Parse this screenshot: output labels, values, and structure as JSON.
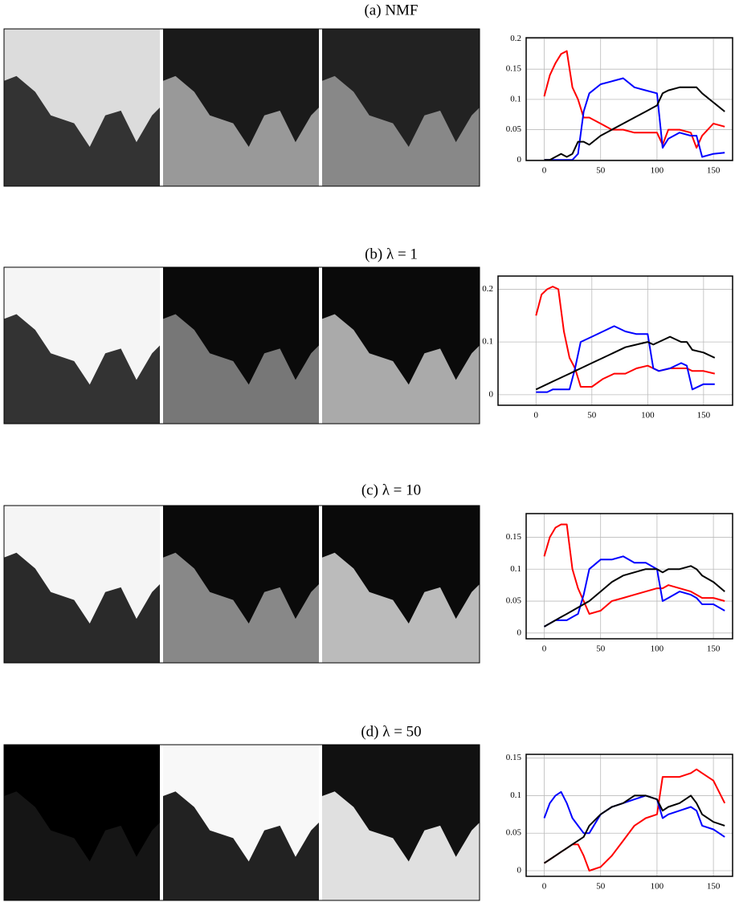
{
  "chart_data": [
    {
      "type": "line",
      "title": "(a) NMF",
      "grid": true,
      "x": [
        0,
        5,
        10,
        15,
        20,
        25,
        30,
        35,
        40,
        50,
        60,
        70,
        80,
        90,
        100,
        105,
        110,
        120,
        130,
        135,
        140,
        150,
        160
      ],
      "xlim": [
        -16,
        167
      ],
      "xticks": [
        0,
        50,
        100,
        150
      ],
      "ylim": [
        -0.001,
        0.202
      ],
      "yticks": [
        0,
        0.05,
        0.1,
        0.15,
        0.2
      ],
      "series": [
        {
          "color": "#ff0000",
          "values": [
            0.105,
            0.14,
            0.16,
            0.175,
            0.18,
            0.12,
            0.1,
            0.07,
            0.07,
            0.06,
            0.05,
            0.05,
            0.045,
            0.045,
            0.045,
            0.025,
            0.05,
            0.05,
            0.045,
            0.02,
            0.04,
            0.06,
            0.055
          ]
        },
        {
          "color": "#0000ff",
          "values": [
            0,
            0,
            0,
            0,
            0,
            0,
            0.01,
            0.08,
            0.11,
            0.125,
            0.13,
            0.135,
            0.12,
            0.115,
            0.11,
            0.02,
            0.035,
            0.045,
            0.04,
            0.04,
            0.005,
            0.01,
            0.012
          ]
        },
        {
          "color": "#000000",
          "values": [
            0,
            0,
            0.005,
            0.01,
            0.005,
            0.01,
            0.03,
            0.03,
            0.025,
            0.04,
            0.05,
            0.06,
            0.07,
            0.08,
            0.09,
            0.11,
            0.115,
            0.12,
            0.12,
            0.12,
            0.11,
            0.095,
            0.08
          ]
        }
      ]
    },
    {
      "type": "line",
      "title": "(b) λ = 1",
      "grid": true,
      "x": [
        0,
        5,
        10,
        15,
        20,
        25,
        30,
        35,
        40,
        50,
        60,
        70,
        80,
        90,
        100,
        105,
        110,
        120,
        130,
        135,
        140,
        150,
        160
      ],
      "xlim": [
        -34,
        176
      ],
      "xticks": [
        0,
        50,
        100,
        150
      ],
      "ylim": [
        -0.02,
        0.225
      ],
      "yticks": [
        0,
        0.1,
        0.2
      ],
      "series": [
        {
          "color": "#ff0000",
          "values": [
            0.15,
            0.19,
            0.2,
            0.205,
            0.2,
            0.12,
            0.07,
            0.05,
            0.015,
            0.015,
            0.03,
            0.04,
            0.04,
            0.05,
            0.055,
            0.05,
            0.045,
            0.05,
            0.05,
            0.05,
            0.045,
            0.045,
            0.04
          ]
        },
        {
          "color": "#0000ff",
          "values": [
            0.005,
            0.005,
            0.005,
            0.01,
            0.01,
            0.01,
            0.01,
            0.05,
            0.1,
            0.11,
            0.12,
            0.13,
            0.12,
            0.115,
            0.115,
            0.05,
            0.045,
            0.05,
            0.06,
            0.055,
            0.01,
            0.02,
            0.02
          ]
        },
        {
          "color": "#000000",
          "values": [
            0.01,
            0.015,
            0.02,
            0.025,
            0.03,
            0.035,
            0.04,
            0.045,
            0.05,
            0.06,
            0.07,
            0.08,
            0.09,
            0.095,
            0.1,
            0.095,
            0.1,
            0.11,
            0.1,
            0.1,
            0.085,
            0.08,
            0.07
          ]
        }
      ]
    },
    {
      "type": "line",
      "title": "(c) λ = 10",
      "grid": true,
      "x": [
        0,
        5,
        10,
        15,
        20,
        25,
        30,
        35,
        40,
        50,
        60,
        70,
        80,
        90,
        100,
        105,
        110,
        120,
        130,
        135,
        140,
        150,
        160
      ],
      "xlim": [
        -16,
        167
      ],
      "xticks": [
        0,
        50,
        100,
        150
      ],
      "ylim": [
        -0.009,
        0.187
      ],
      "yticks": [
        0,
        0.05,
        0.1,
        0.15
      ],
      "series": [
        {
          "color": "#ff0000",
          "values": [
            0.12,
            0.15,
            0.165,
            0.17,
            0.17,
            0.1,
            0.07,
            0.05,
            0.03,
            0.035,
            0.05,
            0.055,
            0.06,
            0.065,
            0.07,
            0.07,
            0.075,
            0.07,
            0.065,
            0.06,
            0.055,
            0.055,
            0.05
          ]
        },
        {
          "color": "#0000ff",
          "values": [
            0.01,
            0.015,
            0.02,
            0.02,
            0.02,
            0.025,
            0.03,
            0.06,
            0.1,
            0.115,
            0.115,
            0.12,
            0.11,
            0.11,
            0.1,
            0.05,
            0.055,
            0.065,
            0.06,
            0.055,
            0.045,
            0.045,
            0.035
          ]
        },
        {
          "color": "#000000",
          "values": [
            0.01,
            0.015,
            0.02,
            0.025,
            0.03,
            0.035,
            0.04,
            0.045,
            0.05,
            0.065,
            0.08,
            0.09,
            0.095,
            0.1,
            0.1,
            0.095,
            0.1,
            0.1,
            0.105,
            0.1,
            0.09,
            0.08,
            0.065
          ]
        }
      ]
    },
    {
      "type": "line",
      "title": "(d) λ = 50",
      "grid": true,
      "x": [
        0,
        5,
        10,
        15,
        20,
        25,
        30,
        35,
        40,
        50,
        60,
        70,
        80,
        90,
        100,
        105,
        110,
        120,
        130,
        135,
        140,
        150,
        160
      ],
      "xlim": [
        -16,
        167
      ],
      "xticks": [
        0,
        50,
        100,
        150
      ],
      "ylim": [
        -0.0075,
        0.155
      ],
      "yticks": [
        0,
        0.05,
        0.1,
        0.15
      ],
      "series": [
        {
          "color": "#ff0000",
          "values": [
            0.01,
            0.015,
            0.02,
            0.025,
            0.03,
            0.035,
            0.035,
            0.02,
            0,
            0.005,
            0.02,
            0.04,
            0.06,
            0.07,
            0.075,
            0.125,
            0.125,
            0.125,
            0.13,
            0.135,
            0.13,
            0.12,
            0.09
          ]
        },
        {
          "color": "#0000ff",
          "values": [
            0.07,
            0.09,
            0.1,
            0.105,
            0.09,
            0.07,
            0.06,
            0.05,
            0.05,
            0.075,
            0.085,
            0.09,
            0.095,
            0.1,
            0.095,
            0.07,
            0.075,
            0.08,
            0.085,
            0.08,
            0.06,
            0.055,
            0.045
          ]
        },
        {
          "color": "#000000",
          "values": [
            0.01,
            0.015,
            0.02,
            0.025,
            0.03,
            0.035,
            0.04,
            0.045,
            0.06,
            0.075,
            0.085,
            0.09,
            0.1,
            0.1,
            0.095,
            0.08,
            0.085,
            0.09,
            0.1,
            0.09,
            0.075,
            0.065,
            0.06
          ]
        }
      ]
    }
  ]
}
